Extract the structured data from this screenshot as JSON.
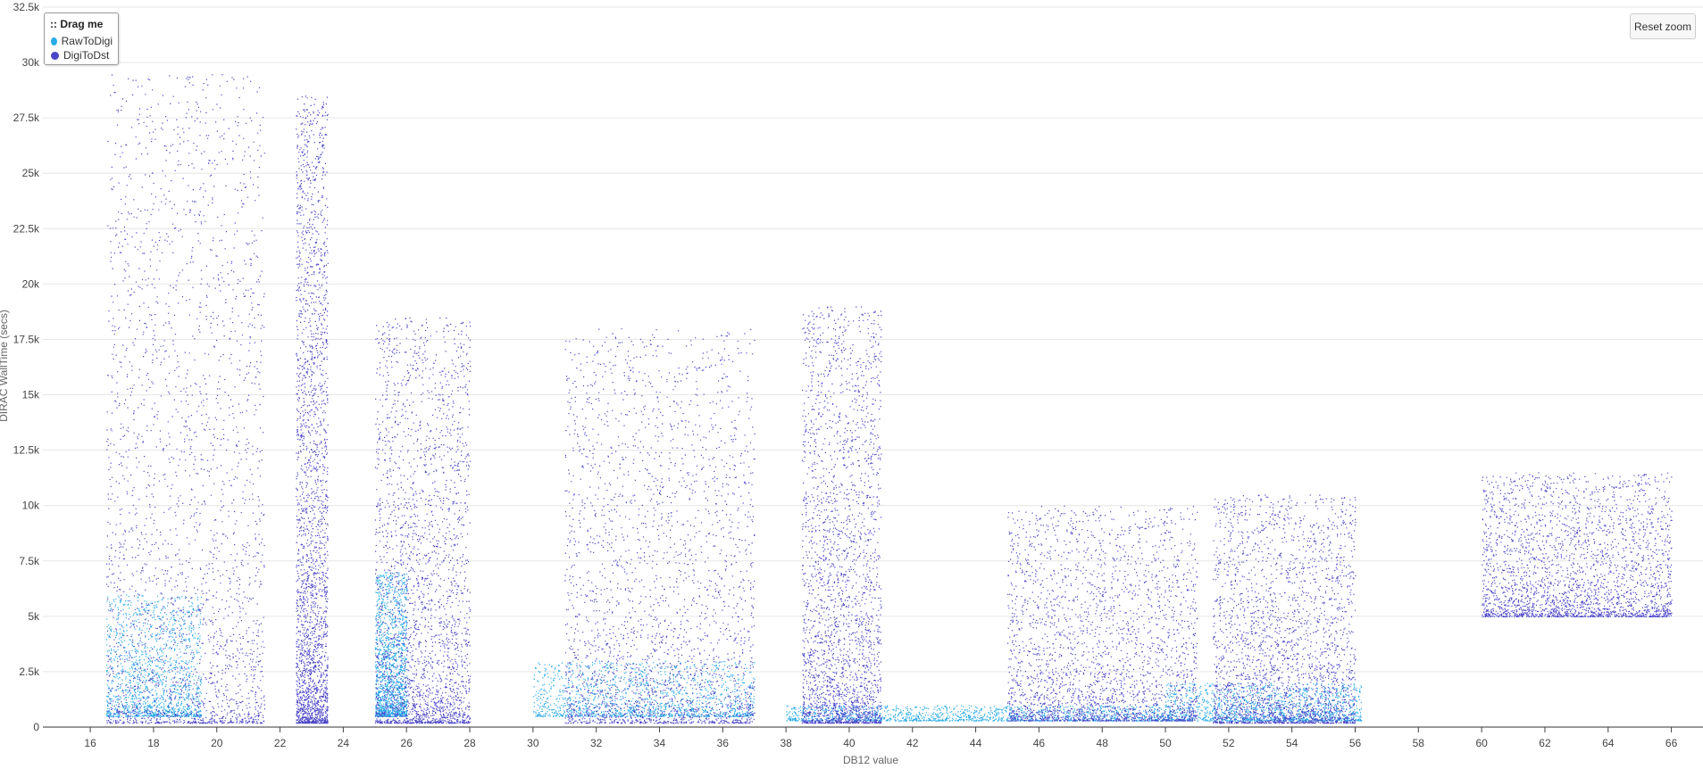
{
  "chart_data": {
    "type": "scatter",
    "title": "",
    "xlabel": "DB12 value",
    "ylabel": "DIRAC WallTime (secs)",
    "xlim": [
      14.5,
      67
    ],
    "ylim": [
      0,
      32500
    ],
    "x_ticks": [
      "16",
      "18",
      "20",
      "22",
      "24",
      "26",
      "28",
      "30",
      "32",
      "34",
      "36",
      "38",
      "40",
      "42",
      "44",
      "46",
      "48",
      "50",
      "52",
      "54",
      "56",
      "58",
      "60",
      "62",
      "64",
      "66"
    ],
    "y_ticks": [
      "0",
      "2.5k",
      "5k",
      "7.5k",
      "10k",
      "12.5k",
      "15k",
      "17.5k",
      "20k",
      "22.5k",
      "25k",
      "27.5k",
      "30k",
      "32.5k"
    ],
    "grid": "horizontal",
    "legend_placement": "top-left",
    "series": [
      {
        "name": "RawToDigi",
        "color": "#29abe9",
        "clusters": [
          {
            "x": [
              16.5,
              19.5
            ],
            "y": [
              500,
              6000
            ]
          },
          {
            "x": [
              25,
              26
            ],
            "y": [
              500,
              7000
            ]
          },
          {
            "x": [
              30,
              37
            ],
            "y": [
              500,
              3000
            ]
          },
          {
            "x": [
              38,
              50
            ],
            "y": [
              300,
              1000
            ]
          },
          {
            "x": [
              50,
              56.2
            ],
            "y": [
              300,
              2000
            ]
          }
        ]
      },
      {
        "name": "DigiToDst",
        "color": "#4b46c8",
        "clusters": [
          {
            "x": [
              16.5,
              21.5
            ],
            "y": [
              200,
              29500
            ]
          },
          {
            "x": [
              22.5,
              23.5
            ],
            "y": [
              200,
              28500
            ]
          },
          {
            "x": [
              25,
              28
            ],
            "y": [
              200,
              18500
            ]
          },
          {
            "x": [
              31,
              37
            ],
            "y": [
              200,
              18000
            ]
          },
          {
            "x": [
              38.5,
              41
            ],
            "y": [
              200,
              19000
            ]
          },
          {
            "x": [
              45,
              51
            ],
            "y": [
              300,
              10000
            ]
          },
          {
            "x": [
              51.5,
              56
            ],
            "y": [
              200,
              10500
            ]
          },
          {
            "x": [
              60,
              66
            ],
            "y": [
              5000,
              11500
            ]
          }
        ]
      }
    ]
  },
  "legend": {
    "title": ":: Drag me",
    "items": [
      "RawToDigi",
      "DigiToDst"
    ]
  },
  "buttons": {
    "reset_zoom": "Reset zoom"
  }
}
